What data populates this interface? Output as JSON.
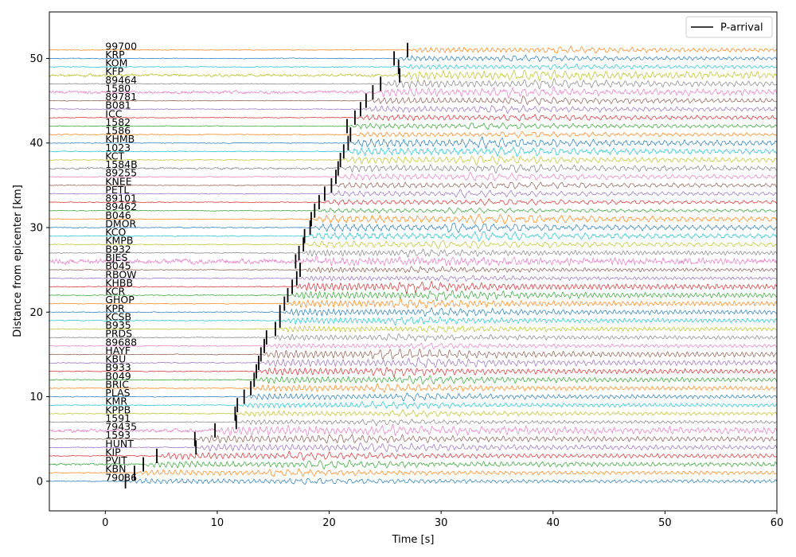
{
  "chart_data": {
    "type": "line",
    "title": "",
    "xlabel": "Time [s]",
    "ylabel": "Distance from epicenter [km]",
    "xlim": [
      -5,
      60
    ],
    "ylim": [
      -3.5,
      55.5
    ],
    "xticks": [
      0,
      10,
      20,
      30,
      40,
      50,
      60
    ],
    "yticks": [
      0,
      10,
      20,
      30,
      40,
      50
    ],
    "legend": {
      "position": "top-right",
      "entries": [
        "P-arrival"
      ],
      "color": "#000000"
    },
    "colors": [
      "#1f77b4",
      "#ff7f0e",
      "#2ca02c",
      "#d62728",
      "#9467bd",
      "#8c564b",
      "#e377c2",
      "#7f7f7f",
      "#bcbd22",
      "#17becf"
    ],
    "stations": [
      {
        "name": "79036",
        "distance": 0,
        "p_arrival": 1.8
      },
      {
        "name": "KBN",
        "distance": 1,
        "p_arrival": 2.6
      },
      {
        "name": "PVIT",
        "distance": 2,
        "p_arrival": 3.4
      },
      {
        "name": "KIP",
        "distance": 3,
        "p_arrival": 4.6
      },
      {
        "name": "HUNT",
        "distance": 4,
        "p_arrival": 8.1
      },
      {
        "name": "1593",
        "distance": 5,
        "p_arrival": 8.0
      },
      {
        "name": "79435",
        "distance": 6,
        "p_arrival": 9.8
      },
      {
        "name": "1591",
        "distance": 7,
        "p_arrival": 11.7
      },
      {
        "name": "KPPB",
        "distance": 8,
        "p_arrival": 11.6
      },
      {
        "name": "KMR",
        "distance": 9,
        "p_arrival": 11.8
      },
      {
        "name": "PLAS",
        "distance": 10,
        "p_arrival": 12.4
      },
      {
        "name": "BRIC",
        "distance": 11,
        "p_arrival": 13.0
      },
      {
        "name": "B049",
        "distance": 12,
        "p_arrival": 13.3
      },
      {
        "name": "B933",
        "distance": 13,
        "p_arrival": 13.5
      },
      {
        "name": "KBU",
        "distance": 14,
        "p_arrival": 13.7
      },
      {
        "name": "HAYF",
        "distance": 15,
        "p_arrival": 13.9
      },
      {
        "name": "89688",
        "distance": 16,
        "p_arrival": 14.2
      },
      {
        "name": "PRDS",
        "distance": 17,
        "p_arrival": 14.4
      },
      {
        "name": "B935",
        "distance": 18,
        "p_arrival": 15.2
      },
      {
        "name": "KCSB",
        "distance": 19,
        "p_arrival": 15.6
      },
      {
        "name": "KPR",
        "distance": 20,
        "p_arrival": 15.6
      },
      {
        "name": "GHOP",
        "distance": 21,
        "p_arrival": 16.0
      },
      {
        "name": "KCR",
        "distance": 22,
        "p_arrival": 16.3
      },
      {
        "name": "KHBB",
        "distance": 23,
        "p_arrival": 16.7
      },
      {
        "name": "RBOW",
        "distance": 24,
        "p_arrival": 17.1
      },
      {
        "name": "B045",
        "distance": 25,
        "p_arrival": 17.4
      },
      {
        "name": "BJES",
        "distance": 26,
        "p_arrival": 17.0
      },
      {
        "name": "B932",
        "distance": 27,
        "p_arrival": 17.3
      },
      {
        "name": "KMPB",
        "distance": 28,
        "p_arrival": 17.7
      },
      {
        "name": "KCO",
        "distance": 29,
        "p_arrival": 17.8
      },
      {
        "name": "DMOR",
        "distance": 30,
        "p_arrival": 18.3
      },
      {
        "name": "B046",
        "distance": 31,
        "p_arrival": 18.4
      },
      {
        "name": "89462",
        "distance": 32,
        "p_arrival": 18.7
      },
      {
        "name": "89101",
        "distance": 33,
        "p_arrival": 19.1
      },
      {
        "name": "PETL",
        "distance": 34,
        "p_arrival": 19.6
      },
      {
        "name": "KNEE",
        "distance": 35,
        "p_arrival": 20.2
      },
      {
        "name": "89255",
        "distance": 36,
        "p_arrival": 20.6
      },
      {
        "name": "1584B",
        "distance": 37,
        "p_arrival": 20.8
      },
      {
        "name": "KCT",
        "distance": 38,
        "p_arrival": 21.0
      },
      {
        "name": "1023",
        "distance": 39,
        "p_arrival": 21.3
      },
      {
        "name": "KHMB",
        "distance": 40,
        "p_arrival": 21.7
      },
      {
        "name": "1586",
        "distance": 41,
        "p_arrival": 21.9
      },
      {
        "name": "1582",
        "distance": 42,
        "p_arrival": 21.6
      },
      {
        "name": "ICC",
        "distance": 43,
        "p_arrival": 22.3
      },
      {
        "name": "B081",
        "distance": 44,
        "p_arrival": 22.8
      },
      {
        "name": "89781",
        "distance": 45,
        "p_arrival": 23.3
      },
      {
        "name": "1580",
        "distance": 46,
        "p_arrival": 23.9
      },
      {
        "name": "89464",
        "distance": 47,
        "p_arrival": 24.6
      },
      {
        "name": "KFP",
        "distance": 48,
        "p_arrival": 26.3
      },
      {
        "name": "KOM",
        "distance": 49,
        "p_arrival": 26.2
      },
      {
        "name": "KRP",
        "distance": 50,
        "p_arrival": 25.8
      },
      {
        "name": "99700",
        "distance": 51,
        "p_arrival": 27.0
      }
    ]
  }
}
